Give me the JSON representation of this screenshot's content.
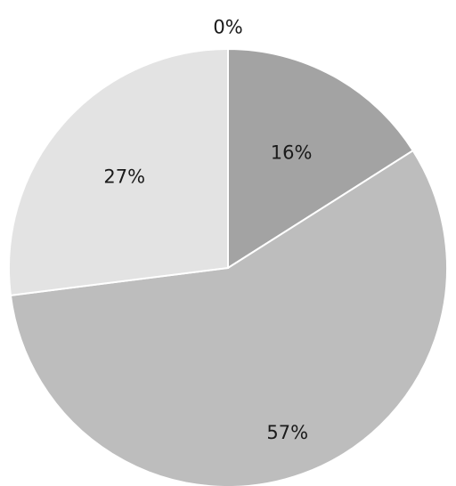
{
  "chart_data": {
    "type": "pie",
    "title": "",
    "start": "top",
    "direction": "clockwise",
    "legend": "none",
    "slices": [
      {
        "label": "0%",
        "value": 0,
        "color": "#c4c4c4"
      },
      {
        "label": "16%",
        "value": 16,
        "color": "#a3a3a3"
      },
      {
        "label": "57%",
        "value": 57,
        "color": "#bdbdbd"
      },
      {
        "label": "27%",
        "value": 27,
        "color": "#e3e3e3"
      }
    ]
  }
}
